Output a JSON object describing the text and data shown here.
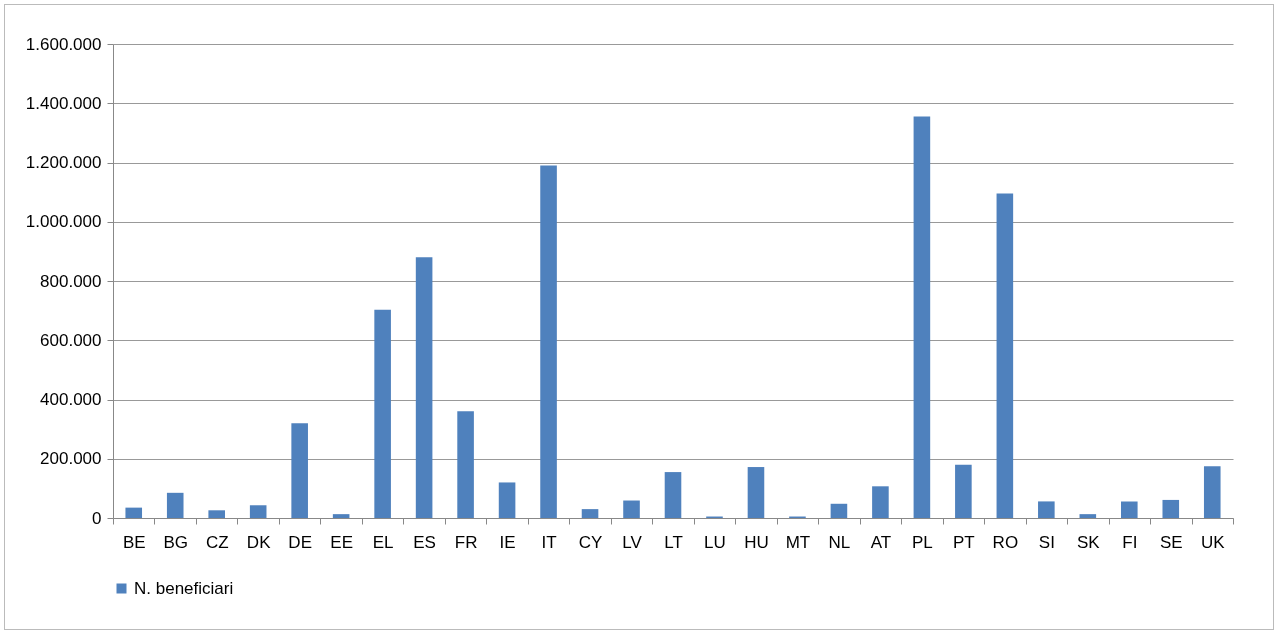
{
  "chart_data": {
    "type": "bar",
    "categories": [
      "BE",
      "BG",
      "CZ",
      "DK",
      "DE",
      "EE",
      "EL",
      "ES",
      "FR",
      "IE",
      "IT",
      "CY",
      "LV",
      "LT",
      "LU",
      "HU",
      "MT",
      "NL",
      "AT",
      "PL",
      "PT",
      "RO",
      "SI",
      "SK",
      "FI",
      "SE",
      "UK"
    ],
    "series": [
      {
        "name": "N. beneficiari",
        "color": "#4f81bd",
        "values": [
          35000,
          85000,
          26000,
          43000,
          320000,
          13000,
          703000,
          880000,
          360000,
          120000,
          1190000,
          30000,
          59000,
          155000,
          5000,
          172000,
          5000,
          48000,
          107000,
          1355000,
          180000,
          1095000,
          56000,
          13000,
          56000,
          61000,
          175000
        ]
      }
    ],
    "ylim": [
      0,
      1600000
    ],
    "yticks": [
      0,
      {
        "value": 200000,
        "label": "200.000"
      },
      {
        "value": 400000,
        "label": "400.000"
      },
      {
        "value": 600000,
        "label": "600.000"
      },
      {
        "value": 800000,
        "label": "800.000"
      },
      {
        "value": 1000000,
        "label": "1.000.000"
      },
      {
        "value": 1200000,
        "label": "1.200.000"
      },
      {
        "value": 1400000,
        "label": "1.400.000"
      },
      {
        "value": 1600000,
        "label": "1.600.000"
      }
    ],
    "grid": "y",
    "legend": "bottom"
  }
}
